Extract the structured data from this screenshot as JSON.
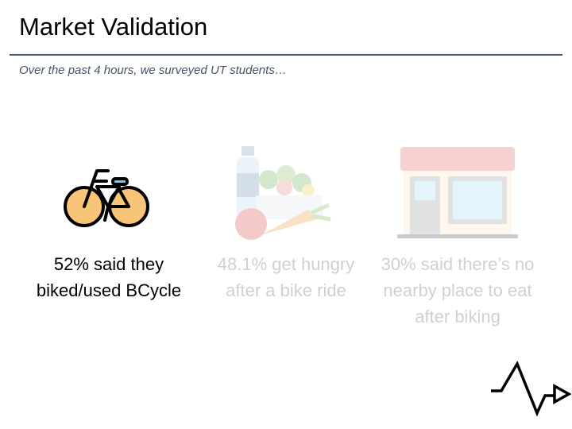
{
  "slide": {
    "title": "Market Validation",
    "subtitle": "Over the past 4 hours, we surveyed UT students…",
    "stats": [
      {
        "icon": "bicycle-icon",
        "text": "52% said they biked/used BCycle",
        "highlighted": true
      },
      {
        "icon": "groceries-icon",
        "text": "48.1% get hungry after a bike ride",
        "highlighted": false
      },
      {
        "icon": "storefront-icon",
        "text": "30% said there’s no nearby place to eat after biking",
        "highlighted": false
      }
    ]
  },
  "colors": {
    "accent": "#44546a",
    "wheel": "#f8c477",
    "faded_text": "#d0d0d0"
  }
}
